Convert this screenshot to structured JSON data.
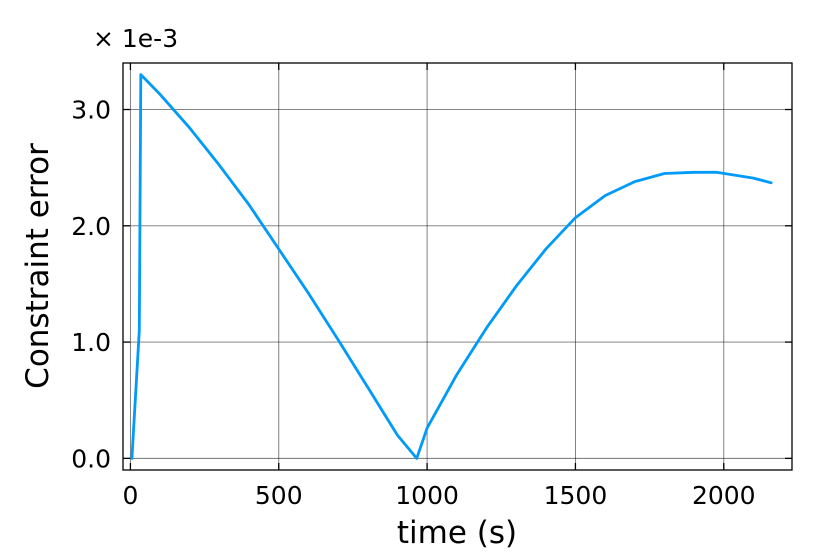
{
  "chart_data": {
    "type": "line",
    "xlabel": "time (s)",
    "ylabel": "Constraint error",
    "scale_label": "× 1e-3",
    "xlim": [
      -25,
      2230
    ],
    "ylim": [
      -0.1,
      3.4
    ],
    "xticks": [
      0,
      500,
      1000,
      1500,
      2000
    ],
    "xtick_labels": [
      "0",
      "500",
      "1000",
      "1500",
      "2000"
    ],
    "yticks": [
      0.0,
      1.0,
      2.0,
      3.0
    ],
    "ytick_labels": [
      "0.0",
      "1.0",
      "2.0",
      "3.0"
    ],
    "grid": true,
    "legend": "none",
    "series": [
      {
        "color": "#009af9",
        "x": [
          5,
          30,
          35,
          100,
          200,
          300,
          400,
          500,
          600,
          700,
          800,
          900,
          965,
          1000,
          1100,
          1200,
          1300,
          1400,
          1500,
          1600,
          1700,
          1800,
          1900,
          1975,
          2050,
          2100,
          2160
        ],
        "y": [
          0.0,
          1.1,
          3.3,
          3.13,
          2.84,
          2.52,
          2.18,
          1.8,
          1.42,
          1.02,
          0.61,
          0.2,
          0.0,
          0.26,
          0.72,
          1.12,
          1.48,
          1.8,
          2.07,
          2.26,
          2.38,
          2.45,
          2.46,
          2.46,
          2.43,
          2.41,
          2.37
        ]
      }
    ]
  }
}
